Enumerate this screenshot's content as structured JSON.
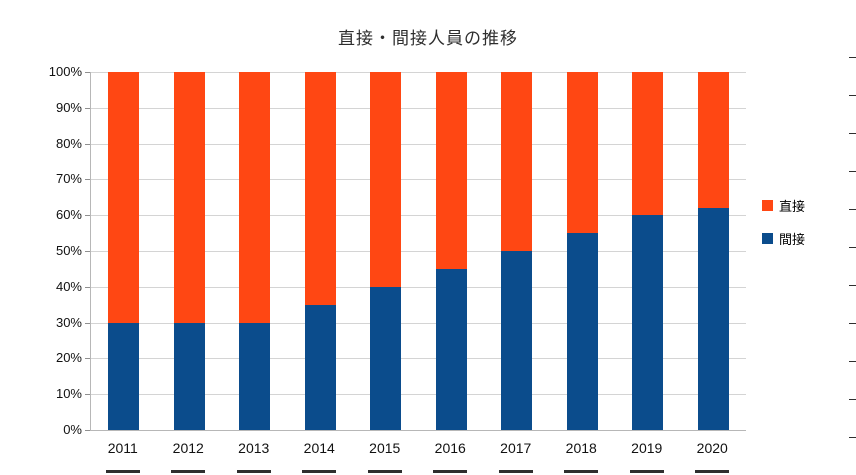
{
  "title": "直接・間接人員の推移",
  "colors": {
    "direct": "#ff4713",
    "indirect": "#0b4c8c",
    "grid": "#d4d4d4",
    "axis": "#b7b7b7",
    "text": "#111111"
  },
  "legend": {
    "items": [
      {
        "label": "直接",
        "color": "#ff4713"
      },
      {
        "label": "間接",
        "color": "#0b4c8c"
      }
    ]
  },
  "chart_data": {
    "type": "bar",
    "stacked": true,
    "percent": true,
    "title": "直接・間接人員の推移",
    "xlabel": "",
    "ylabel": "",
    "categories": [
      "2011",
      "2012",
      "2013",
      "2014",
      "2015",
      "2016",
      "2017",
      "2018",
      "2019",
      "2020"
    ],
    "series": [
      {
        "name": "間接",
        "color": "#0b4c8c",
        "values": [
          30,
          30,
          30,
          35,
          40,
          45,
          50,
          55,
          60,
          62
        ]
      },
      {
        "name": "直接",
        "color": "#ff4713",
        "values": [
          70,
          70,
          70,
          65,
          60,
          55,
          50,
          45,
          40,
          38
        ]
      }
    ],
    "ylim": [
      0,
      100
    ],
    "yticks": [
      "0%",
      "10%",
      "20%",
      "30%",
      "40%",
      "50%",
      "60%",
      "70%",
      "80%",
      "90%",
      "100%"
    ],
    "grid": true,
    "legend_position": "right"
  }
}
